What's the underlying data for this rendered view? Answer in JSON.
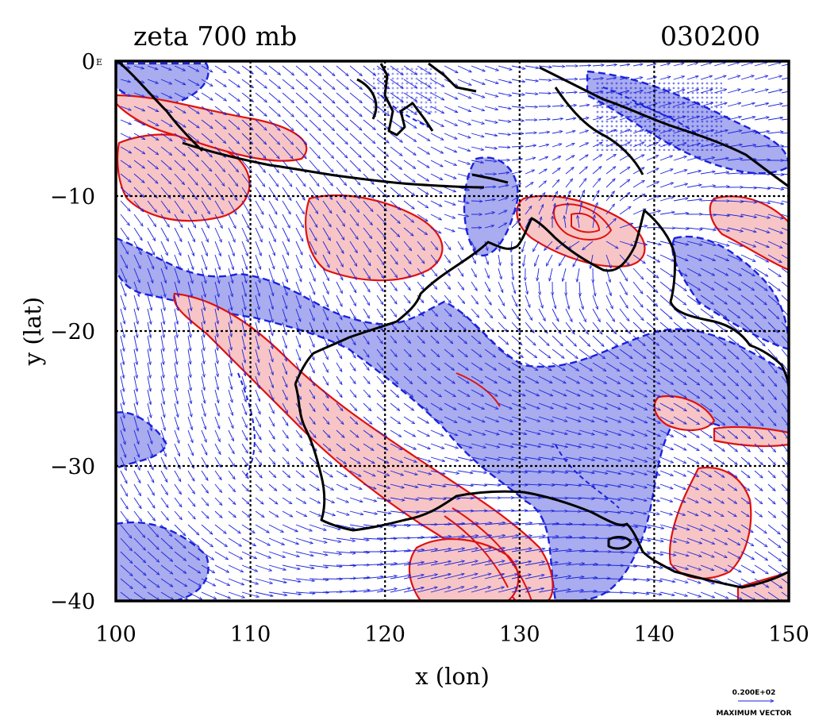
{
  "title": "zeta 700 mb",
  "time_label": "030200",
  "corner_mark": "E",
  "map": {
    "xlabel": "x (lon)",
    "ylabel": "y (lat)",
    "x_ticks": [
      "100",
      "110",
      "120",
      "130",
      "140",
      "150"
    ],
    "y_ticks": [
      "0",
      "−10",
      "−20",
      "−30",
      "−40"
    ],
    "lon_range": [
      100,
      150
    ],
    "lat_range": [
      -40,
      0
    ],
    "gridlines": "dashed-black-every-10deg",
    "field": "relative vorticity (zeta) at 700 mb with wind vectors",
    "colors": {
      "positive_fill": "#f7c5c5",
      "positive_contour": "#e01010",
      "negative_fill": "#a9acee",
      "negative_contour": "#1a22dd",
      "vector": "#1a22dd",
      "coastline": "#000000"
    }
  },
  "legend": {
    "value": "0.200E+02",
    "caption": "MAXIMUM VECTOR"
  }
}
